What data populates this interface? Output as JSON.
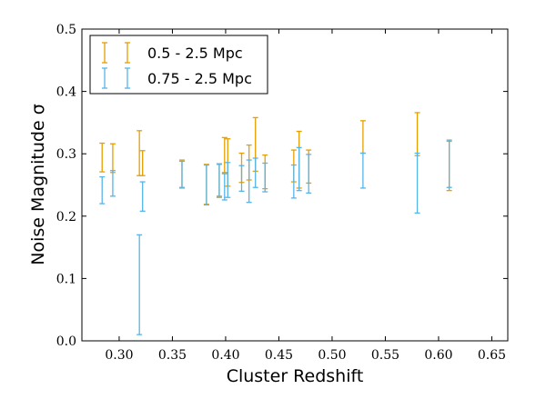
{
  "chart_data": {
    "type": "scatter",
    "xlabel": "Cluster Redshift",
    "ylabel": "Noise Magnitude σ",
    "xlim": [
      0.265,
      0.665
    ],
    "ylim": [
      0.0,
      0.5
    ],
    "xticks": [
      "0.30",
      "0.35",
      "0.40",
      "0.45",
      "0.50",
      "0.55",
      "0.60",
      "0.65"
    ],
    "xtick_values": [
      0.3,
      0.35,
      0.4,
      0.45,
      0.5,
      0.55,
      0.6,
      0.65
    ],
    "yticks": [
      "0.0",
      "0.1",
      "0.2",
      "0.3",
      "0.4",
      "0.5"
    ],
    "ytick_values": [
      0.0,
      0.1,
      0.2,
      0.3,
      0.4,
      0.5
    ],
    "grid": false,
    "legend_position": "top-left",
    "series": [
      {
        "name": "0.5 - 2.5 Mpc",
        "color": "#E69F00",
        "x": [
          0.284,
          0.294,
          0.319,
          0.322,
          0.359,
          0.382,
          0.394,
          0.399,
          0.402,
          0.415,
          0.422,
          0.428,
          0.437,
          0.464,
          0.469,
          0.478,
          0.529,
          0.58,
          0.61
        ],
        "ylow": [
          0.271,
          0.27,
          0.265,
          0.265,
          0.245,
          0.219,
          0.23,
          0.27,
          0.248,
          0.254,
          0.258,
          0.272,
          0.244,
          0.255,
          0.245,
          0.253,
          0.301,
          0.297,
          0.241
        ],
        "yhigh": [
          0.317,
          0.316,
          0.337,
          0.305,
          0.29,
          0.283,
          0.283,
          0.326,
          0.324,
          0.301,
          0.314,
          0.358,
          0.298,
          0.306,
          0.336,
          0.306,
          0.353,
          0.366,
          0.32
        ]
      },
      {
        "name": "0.75 - 2.5 Mpc",
        "color": "#56B4E9",
        "x": [
          0.284,
          0.294,
          0.319,
          0.322,
          0.359,
          0.382,
          0.394,
          0.399,
          0.402,
          0.415,
          0.422,
          0.428,
          0.437,
          0.464,
          0.469,
          0.478,
          0.529,
          0.58,
          0.61
        ],
        "ylow": [
          0.22,
          0.232,
          0.01,
          0.208,
          0.246,
          0.218,
          0.232,
          0.226,
          0.23,
          0.24,
          0.222,
          0.246,
          0.239,
          0.229,
          0.241,
          0.237,
          0.245,
          0.205,
          0.246
        ],
        "yhigh": [
          0.263,
          0.273,
          0.17,
          0.255,
          0.288,
          0.282,
          0.284,
          0.268,
          0.286,
          0.281,
          0.29,
          0.293,
          0.285,
          0.282,
          0.31,
          0.299,
          0.301,
          0.301,
          0.322
        ]
      }
    ]
  }
}
